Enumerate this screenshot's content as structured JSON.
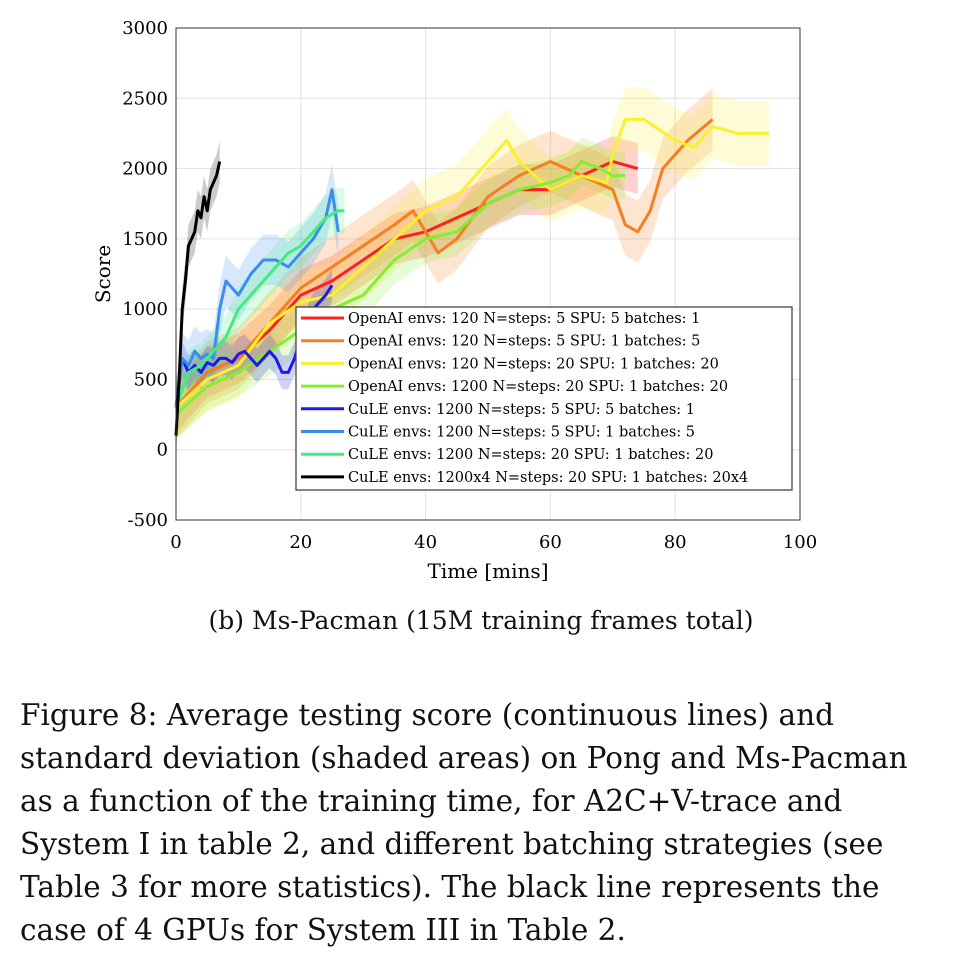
{
  "chart_data": {
    "type": "line",
    "title": "",
    "xlabel": "Time [mins]",
    "ylabel": "Score",
    "xlim": [
      0,
      100
    ],
    "ylim": [
      -500,
      3000
    ],
    "xticks": [
      "0",
      "20",
      "40",
      "60",
      "80",
      "100"
    ],
    "yticks": [
      "-500",
      "0",
      "500",
      "1000",
      "1500",
      "2000",
      "2500",
      "3000"
    ],
    "grid": true,
    "legend_position": "lower-right (inside)",
    "series": [
      {
        "name": "OpenAI envs: 120 N=steps: 5 SPU: 5 batches: 1",
        "color": "#ff2020",
        "std": 180,
        "x": [
          0,
          5,
          10,
          15,
          20,
          25,
          30,
          35,
          40,
          45,
          50,
          55,
          60,
          65,
          70,
          74
        ],
        "y": [
          300,
          550,
          650,
          850,
          1100,
          1200,
          1350,
          1500,
          1550,
          1650,
          1750,
          1850,
          1850,
          1950,
          2050,
          2000
        ]
      },
      {
        "name": "OpenAI envs: 120 N=steps: 5 SPU: 1 batches: 5",
        "color": "#f57f20",
        "std": 220,
        "x": [
          0,
          5,
          10,
          15,
          20,
          25,
          30,
          35,
          38,
          40,
          42,
          45,
          50,
          55,
          60,
          65,
          70,
          72,
          74,
          76,
          78,
          82,
          86
        ],
        "y": [
          300,
          550,
          650,
          900,
          1150,
          1300,
          1450,
          1600,
          1700,
          1550,
          1400,
          1500,
          1800,
          1950,
          2050,
          1950,
          1850,
          1600,
          1550,
          1700,
          2000,
          2200,
          2350
        ]
      },
      {
        "name": "OpenAI envs: 120 N=steps: 20 SPU: 1 batches: 20",
        "color": "#f8f030",
        "std": 230,
        "x": [
          0,
          5,
          10,
          15,
          20,
          25,
          30,
          35,
          40,
          45,
          50,
          53,
          55,
          60,
          65,
          69,
          70,
          72,
          75,
          80,
          83,
          86,
          90,
          95
        ],
        "y": [
          300,
          500,
          600,
          900,
          1050,
          1100,
          1300,
          1500,
          1700,
          1800,
          2050,
          2200,
          2050,
          1850,
          1950,
          1900,
          2100,
          2350,
          2350,
          2200,
          2150,
          2300,
          2250,
          2250
        ]
      },
      {
        "name": "OpenAI envs: 1200 N=steps: 20 SPU: 1 batches: 20",
        "color": "#80f030",
        "std": 170,
        "x": [
          0,
          5,
          10,
          15,
          20,
          25,
          30,
          35,
          40,
          45,
          50,
          55,
          60,
          63,
          65,
          68,
          70,
          72
        ],
        "y": [
          250,
          450,
          550,
          700,
          850,
          1000,
          1100,
          1350,
          1500,
          1550,
          1750,
          1850,
          1900,
          1950,
          2050,
          2000,
          1950,
          1950
        ]
      },
      {
        "name": "CuLE envs: 1200 N=steps: 5 SPU: 5 batches: 1",
        "color": "#1a1aee",
        "std": 120,
        "x": [
          0,
          1,
          2,
          3,
          4,
          5,
          6,
          7,
          8,
          9,
          10,
          11,
          12,
          13,
          14,
          15,
          16,
          17,
          18,
          19,
          20,
          21,
          22,
          23,
          24,
          25
        ],
        "y": [
          300,
          650,
          550,
          600,
          550,
          620,
          600,
          650,
          650,
          620,
          680,
          700,
          650,
          600,
          650,
          700,
          650,
          550,
          550,
          650,
          800,
          900,
          1000,
          1050,
          1100,
          1170
        ]
      },
      {
        "name": "CuLE envs: 1200 N=steps: 5 SPU: 1 batches: 5",
        "color": "#3a8cf0",
        "std": 180,
        "x": [
          0,
          1,
          2,
          3,
          4,
          5,
          6,
          7,
          8,
          10,
          12,
          14,
          16,
          18,
          20,
          22,
          24,
          25,
          26
        ],
        "y": [
          300,
          650,
          600,
          700,
          650,
          680,
          650,
          1000,
          1200,
          1100,
          1250,
          1350,
          1350,
          1300,
          1400,
          1500,
          1650,
          1850,
          1550
        ]
      },
      {
        "name": "CuLE envs: 1200 N=steps: 20 SPU: 1 batches: 20",
        "color": "#40ee80",
        "std": 160,
        "x": [
          0,
          2,
          4,
          6,
          8,
          10,
          12,
          14,
          16,
          18,
          20,
          22,
          24,
          26,
          27
        ],
        "y": [
          300,
          550,
          600,
          700,
          800,
          1000,
          1100,
          1200,
          1300,
          1400,
          1450,
          1550,
          1650,
          1700,
          1700
        ]
      },
      {
        "name": "CuLE envs: 1200x4 N=steps: 20 SPU: 1 batches: 20x4",
        "color": "#000000",
        "std": 150,
        "x": [
          0,
          0.5,
          1,
          1.5,
          2,
          2.5,
          3,
          3.5,
          4,
          4.5,
          5,
          5.5,
          6,
          6.5,
          7
        ],
        "y": [
          100,
          500,
          1000,
          1200,
          1450,
          1500,
          1550,
          1700,
          1650,
          1800,
          1700,
          1850,
          1900,
          1950,
          2050
        ]
      }
    ]
  },
  "subcaption": "(b) Ms-Pacman (15M training frames total)",
  "caption_lines": [
    "Figure 8:  Average testing score (continuous lines) and",
    "standard deviation (shaded areas) on Pong and Ms-Pacman",
    "as a function of the training time, for A2C+V-trace and",
    "System I in table 2, and different batching strategies (see",
    "Table 3 for more statistics). The black line represents the",
    "case of 4 GPUs for System III in Table 2."
  ]
}
